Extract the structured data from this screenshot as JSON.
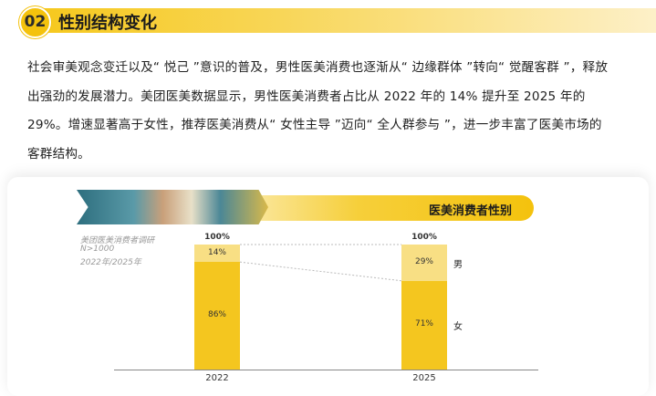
{
  "header": {
    "number": "02",
    "title": "性别结构变化"
  },
  "paragraph": "社会审美观念变迁以及“ 悦己 ”意识的普及，男性医美消费也逐渐从“ 边缘群体 ”转向“ 觉醒客群 ”，释放出强劲的发展潜力。美团医美数据显示，男性医美消费者占比从 2022 年的 14% 提升至 2025 年的 29%。增速显著高于女性，推荐医美消费从“ 女性主导 ”迈向“ 全人群参与 ”，进一步丰富了医美市场的客群结构。",
  "banner": {
    "title": "医美消费者性别"
  },
  "notes": [
    "美团医美消费者调研",
    "N>1000",
    "2022年/2025年"
  ],
  "chart_data": {
    "type": "bar",
    "stacked": true,
    "categories": [
      "2022",
      "2025"
    ],
    "series": [
      {
        "name": "男",
        "values": [
          14,
          29
        ],
        "labels": [
          "14%",
          "29%"
        ],
        "color": "#f8df84"
      },
      {
        "name": "女",
        "values": [
          86,
          71
        ],
        "labels": [
          "86%",
          "71%"
        ],
        "color": "#f4c61f"
      }
    ],
    "totals": [
      "100%",
      "100%"
    ],
    "ylim": [
      0,
      100
    ]
  }
}
